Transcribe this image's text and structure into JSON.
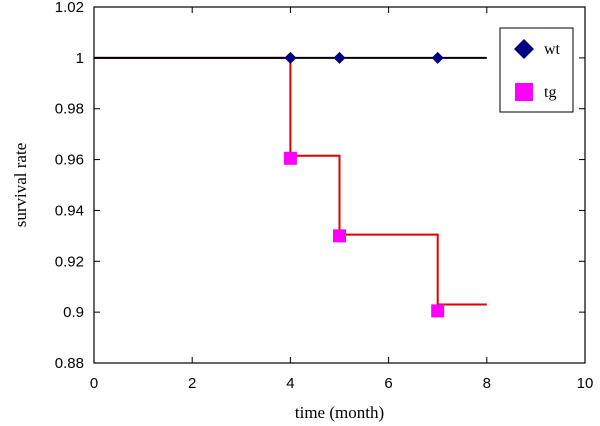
{
  "chart_data": {
    "type": "line",
    "title": "",
    "xlabel": "time (month)",
    "ylabel": "survival rate",
    "xlim": [
      0,
      10
    ],
    "ylim": [
      0.88,
      1.02
    ],
    "xticks": [
      "0",
      "2",
      "4",
      "6",
      "8",
      "10"
    ],
    "yticks": [
      "0.88",
      "0.9",
      "0.92",
      "0.94",
      "0.96",
      "0.98",
      "1",
      "1.02"
    ],
    "grid": false,
    "legend_position": "top-right",
    "series": [
      {
        "name": "wt",
        "marker": "diamond",
        "marker_color": "#000080",
        "line_color": "#000000",
        "step": false,
        "line_x": [
          0,
          8
        ],
        "line_y": [
          1,
          1
        ],
        "points": [
          {
            "x": 4,
            "y": 1
          },
          {
            "x": 5,
            "y": 1
          },
          {
            "x": 7,
            "y": 1
          }
        ]
      },
      {
        "name": "tg",
        "marker": "square",
        "marker_color": "#ff00ff",
        "line_color": "#e00000",
        "step": true,
        "line_x": [
          0,
          4,
          5,
          7,
          8
        ],
        "line_y": [
          1,
          0.9615,
          0.9305,
          0.903,
          0.903
        ],
        "points": [
          {
            "x": 4,
            "y": 0.9605
          },
          {
            "x": 5,
            "y": 0.93
          },
          {
            "x": 7,
            "y": 0.9005
          }
        ]
      }
    ]
  }
}
